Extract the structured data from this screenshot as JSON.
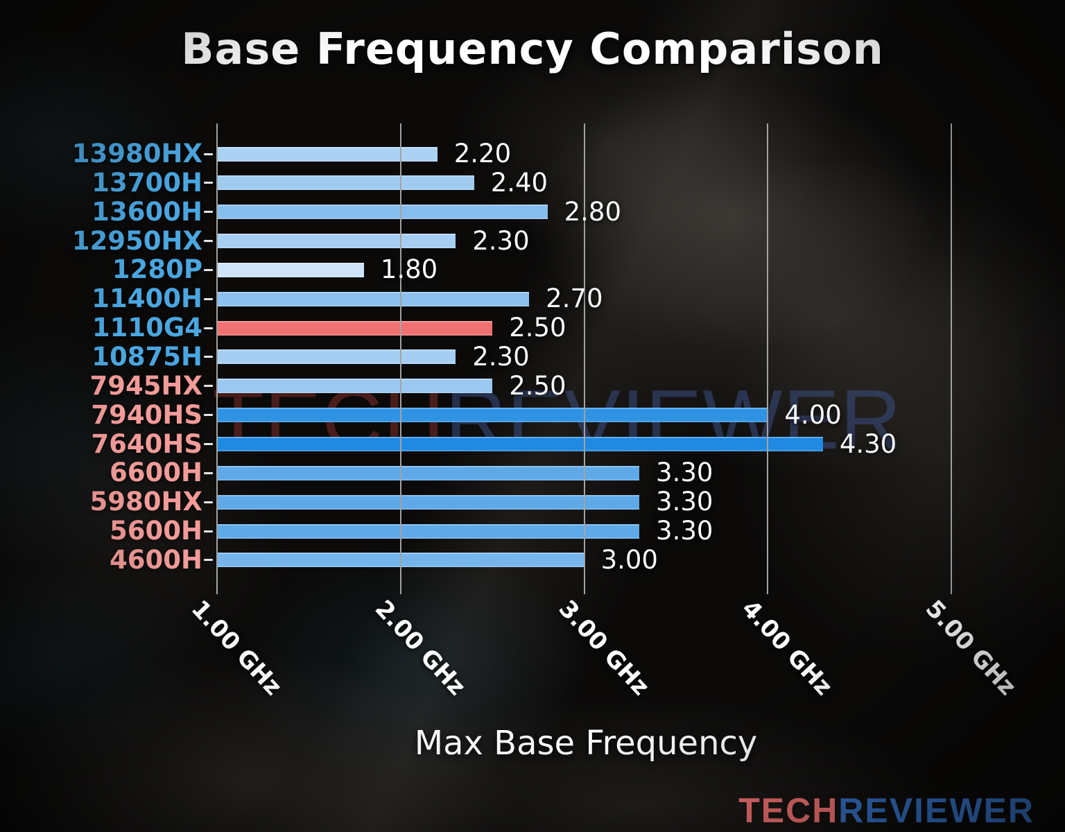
{
  "header": {
    "title": "Base Frequency Comparison"
  },
  "axis": {
    "xlabel": "Max Base Frequency",
    "tick_labels": [
      "1.00 GHz",
      "2.00 GHz",
      "3.00 GHz",
      "4.00 GHz",
      "5.00 GHz"
    ]
  },
  "watermark": {
    "tech": "TECH",
    "reviewer": "REVIEWER"
  },
  "logo": {
    "tech": "TECH",
    "reviewer": "REVIEWER"
  },
  "colors": {
    "label_blue": "#4aa6e0",
    "label_salmon": "#f29b98",
    "highlight_bar": "#f07170",
    "grid": "#a3a3a3",
    "value_text": "#fafafa",
    "watermark_tech": "rgba(125,45,40,0.55)",
    "watermark_reviewer": "rgba(58,78,132,0.55)",
    "logo_tech": "#ef7070",
    "logo_reviewer": "#3470c4"
  },
  "chart_data": {
    "type": "bar",
    "orientation": "horizontal",
    "title": "Base Frequency Comparison",
    "xlabel": "Max Base Frequency",
    "xlim": [
      1.0,
      5.3
    ],
    "grid": true,
    "legend": false,
    "x_tick_values": [
      1.0,
      2.0,
      3.0,
      4.0,
      5.0
    ],
    "x_tick_labels": [
      "1.00 GHz",
      "2.00 GHz",
      "3.00 GHz",
      "4.00 GHz",
      "5.00 GHz"
    ],
    "categories": [
      "13980HX",
      "13700H",
      "13600H",
      "12950HX",
      "1280P",
      "11400H",
      "1110G4",
      "10875H",
      "7945HX",
      "7940HS",
      "7640HS",
      "6600H",
      "5980HX",
      "5600H",
      "4600H"
    ],
    "values": [
      2.2,
      2.4,
      2.8,
      2.3,
      1.8,
      2.7,
      2.5,
      2.3,
      2.5,
      4.0,
      4.3,
      3.3,
      3.3,
      3.3,
      3.0
    ],
    "value_labels": [
      "2.20",
      "2.40",
      "2.80",
      "2.30",
      "1.80",
      "2.70",
      "2.50",
      "2.30",
      "2.50",
      "4.00",
      "4.30",
      "3.30",
      "3.30",
      "3.30",
      "3.00"
    ],
    "bar_colors": [
      "#abd1f3",
      "#9fcbf1",
      "#85bded",
      "#a6cef2",
      "#cfe3f7",
      "#8cc0ee",
      "#f07170",
      "#a6cef2",
      "#99c8f0",
      "#2f93e4",
      "#2089e1",
      "#5fa9e8",
      "#5fa9e8",
      "#5fa9e8",
      "#76b5ec"
    ],
    "category_label_colors": [
      "blue",
      "blue",
      "blue",
      "blue",
      "blue",
      "blue",
      "blue",
      "blue",
      "salmon",
      "salmon",
      "salmon",
      "salmon",
      "salmon",
      "salmon",
      "salmon"
    ],
    "highlighted_category": "1110G4"
  }
}
